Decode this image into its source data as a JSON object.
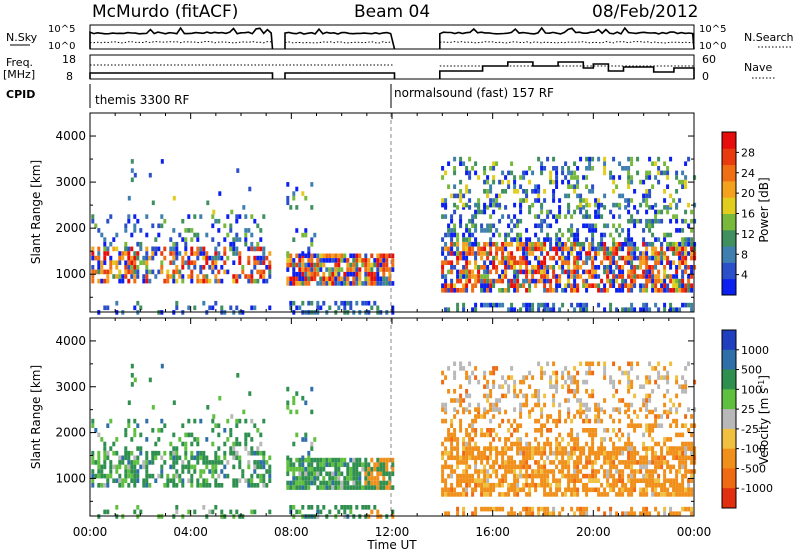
{
  "header": {
    "station": "McMurdo (fitACF)",
    "beam": "Beam 04",
    "date": "08/Feb/2012"
  },
  "panels": {
    "nsky_label": "N.Sky",
    "nsky_ticks": [
      "10^5",
      "10^0"
    ],
    "nsearch_label": "N.Search",
    "nsearch_ticks": [
      "10^5",
      "10^0"
    ],
    "freq_label": [
      "Freq.",
      "[MHz]"
    ],
    "freq_ticks": [
      "18",
      "8"
    ],
    "nave_label": "Nave",
    "nave_ticks": [
      "60",
      "0"
    ],
    "cpid_label": "CPID",
    "cpid_modes": [
      "themis 3300 RF",
      "normalsound (fast) 157 RF"
    ]
  },
  "chart_data": [
    {
      "type": "heatmap",
      "quantity": "Power",
      "xlabel": "Time UT",
      "ylabel": "Slant Range [km]",
      "x_ticks": [
        "00:00",
        "04:00",
        "08:00",
        "12:00",
        "16:00",
        "20:00",
        "00:00"
      ],
      "xlim_hours": [
        0,
        24
      ],
      "ylim_km": [
        180,
        4500
      ],
      "y_ticks": [
        1000,
        2000,
        3000,
        4000
      ],
      "colorbar_label": "Power [dB]",
      "colorbar_ticks": [
        "28",
        "24",
        "20",
        "16",
        "12",
        "8",
        "4"
      ],
      "colorbar_range": [
        0,
        32
      ],
      "colorscale": [
        "#0a1ff0",
        "#2a4fc8",
        "#3f7fb0",
        "#3f8f5f",
        "#78b93c",
        "#e0cd1e",
        "#f4a21d",
        "#f06e14",
        "#e83c0f",
        "#e80d0d"
      ],
      "data_gaps_hours": [
        [
          7.25,
          7.75
        ],
        [
          12.1,
          13.9
        ]
      ]
    },
    {
      "type": "heatmap",
      "quantity": "Velocity",
      "xlabel": "Time UT",
      "ylabel": "Slant Range [km]",
      "x_ticks": [
        "00:00",
        "04:00",
        "08:00",
        "12:00",
        "16:00",
        "20:00",
        "00:00"
      ],
      "xlim_hours": [
        0,
        24
      ],
      "ylim_km": [
        180,
        4500
      ],
      "y_ticks": [
        1000,
        2000,
        3000,
        4000
      ],
      "colorbar_label": "Velocity [m s^-1]",
      "colorbar_ticks": [
        "1000",
        "500",
        "100",
        "25",
        "-25",
        "-100",
        "-500",
        "-1000"
      ],
      "colorscale": [
        "#1f3fbf",
        "#2e6fa8",
        "#2f8f4f",
        "#5fbf3f",
        "#b8b8b8",
        "#f0c040",
        "#f0901a",
        "#f06a14",
        "#e03010"
      ],
      "data_gaps_hours": [
        [
          7.25,
          7.75
        ],
        [
          12.1,
          13.9
        ]
      ]
    }
  ],
  "colors": {
    "gap_background": "#ffffff",
    "axis": "#000000"
  }
}
